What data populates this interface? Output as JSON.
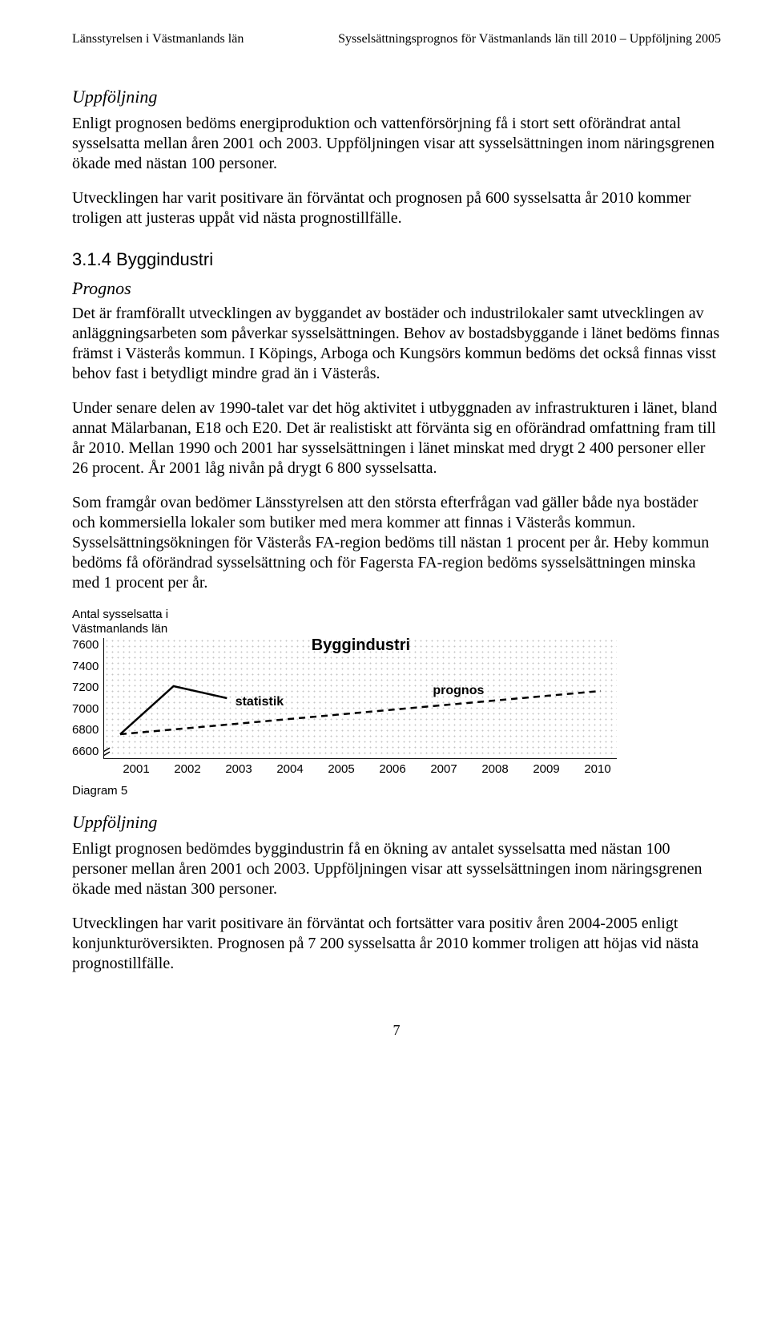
{
  "header": {
    "left": "Länsstyrelsen i Västmanlands län",
    "right": "Sysselsättningsprognos för Västmanlands län till 2010 – Uppföljning 2005"
  },
  "sec1": {
    "title": "Uppföljning",
    "p1": "Enligt prognosen bedöms energiproduktion och vattenförsörjning få i stort sett oförändrat antal sysselsatta mellan åren 2001 och 2003. Uppföljningen visar att sysselsättningen inom näringsgrenen ökade med nästan 100 personer.",
    "p2": "Utvecklingen har varit positivare än förväntat och prognosen på 600 sysselsatta år 2010 kommer troligen att justeras uppåt vid nästa prognostillfälle."
  },
  "sec2": {
    "num_title": "3.1.4 Byggindustri",
    "prognos": "Prognos",
    "p1": "Det är framförallt utvecklingen av byggandet av bostäder och industrilokaler samt utvecklingen av anläggningsarbeten som påverkar sysselsättningen. Behov av bostadsbyggande i länet bedöms finnas främst i Västerås kommun. I Köpings, Arboga och Kungsörs kommun bedöms det också finnas visst behov fast i betydligt mindre grad än i Västerås.",
    "p2": "Under senare delen av 1990-talet var det hög aktivitet i utbyggnaden av infrastrukturen i länet, bland annat Mälarbanan, E18 och E20. Det är realistiskt att förvänta sig en oförändrad omfattning fram till år 2010. Mellan 1990 och 2001 har sysselsättningen i länet minskat med drygt 2 400 personer eller 26 procent. År 2001 låg nivån på drygt 6 800 sysselsatta.",
    "p3": "Som framgår ovan bedömer Länsstyrelsen att den största efterfrågan vad gäller både nya bostäder och kommersiella lokaler som butiker med mera kommer att finnas i Västerås kommun. Sysselsättningsökningen för Västerås FA-region bedöms till nästan 1 procent per år. Heby kommun bedöms få oförändrad sysselsättning och för Fagersta FA-region bedöms sysselsättningen minska med 1 procent per år."
  },
  "chart": {
    "type": "line",
    "ylabel_l1": "Antal sysselsatta i",
    "ylabel_l2": "Västmanlands län",
    "title": "Byggindustri",
    "ylim": [
      6600,
      7600
    ],
    "yticks": [
      "7600",
      "7400",
      "7200",
      "7000",
      "6800",
      "6600"
    ],
    "xticks": [
      "2001",
      "2002",
      "2003",
      "2004",
      "2005",
      "2006",
      "2007",
      "2008",
      "2009",
      "2010"
    ],
    "series": {
      "statistik": {
        "label": "statistik",
        "values": [
          6800,
          7200,
          7100
        ],
        "color": "#000000",
        "width": 2.5,
        "dash": "none"
      },
      "prognos": {
        "label": "prognos",
        "values": [
          6800,
          6840,
          6880,
          6920,
          6960,
          7000,
          7040,
          7080,
          7120,
          7160
        ],
        "color": "#000000",
        "width": 2.5,
        "dash": "8,6"
      }
    },
    "diagram_label": "Diagram 5",
    "plot_background_pattern": "dotted",
    "grid": false
  },
  "sec3": {
    "title": "Uppföljning",
    "p1": "Enligt prognosen bedömdes byggindustrin få en ökning av antalet sysselsatta med nästan 100 personer mellan åren 2001 och 2003. Uppföljningen visar att sysselsättningen inom näringsgrenen ökade med nästan 300 personer.",
    "p2": "Utvecklingen har varit positivare än förväntat och fortsätter vara positiv åren 2004-2005 enligt konjunkturöversikten. Prognosen på 7 200 sysselsatta år 2010 kommer troligen att höjas vid nästa prognostillfälle."
  },
  "page_number": "7"
}
